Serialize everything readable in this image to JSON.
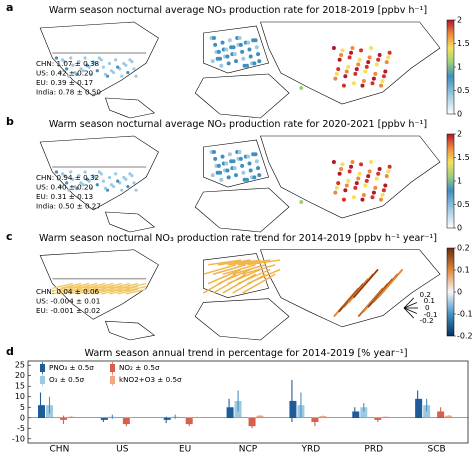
{
  "chart_data": [
    {
      "type": "map",
      "panel": "a",
      "title": "Warm season nocturnal average NO₃ production rate for 2018-2019 [ppbv h⁻¹]",
      "annotations": [
        "CHN: 1.07 ± 0.38",
        "US: 0.42 ± 0.20",
        "EU: 0.39 ± 0.17",
        "India: 0.78 ± 0.50"
      ],
      "clim": [
        0,
        2
      ],
      "cticks": [
        0,
        0.5,
        1,
        1.5,
        2
      ]
    },
    {
      "type": "map",
      "panel": "b",
      "title": "Warm season nocturnal average NO₃ production rate for 2020-2021 [ppbv h⁻¹]",
      "annotations": [
        "CHN: 0.94 ± 0.32",
        "US: 0.40 ± 0.20",
        "EU: 0.31 ± 0.13",
        "India: 0.50 ± 0.27"
      ],
      "clim": [
        0,
        2
      ],
      "cticks": [
        0,
        0.5,
        1,
        1.5,
        2
      ]
    },
    {
      "type": "map",
      "panel": "c",
      "title": "Warm season nocturnal NO₃ production rate trend for 2014-2019 [ppbv h⁻¹ year⁻¹]",
      "annotations": [
        "CHN: 0.04 ± 0.06",
        "US: -0.004 ± 0.01",
        "EU: -0.001 ± 0.02"
      ],
      "clim": [
        -0.2,
        0.2
      ],
      "cticks": [
        -0.2,
        -0.1,
        0,
        0.1,
        0.2
      ],
      "arrow_ticks": [
        0.2,
        0.1,
        0,
        -0.1,
        -0.2
      ]
    },
    {
      "type": "bar",
      "panel": "d",
      "title": "Warm season annual trend in percentage for 2014-2019 [% year⁻¹]",
      "categories": [
        "CHN",
        "US",
        "EU",
        "NCP",
        "YRD",
        "PRD",
        "SCB"
      ],
      "series": [
        {
          "name": "PNO₃ ± 0.5σ",
          "color": "#1f5c99",
          "values": [
            6,
            -1,
            -1,
            5,
            8,
            3,
            9
          ],
          "errors": [
            6,
            1,
            1.5,
            4,
            10,
            2,
            4
          ]
        },
        {
          "name": "O₃ ± 0.5σ",
          "color": "#9ecae1",
          "values": [
            6,
            0.5,
            0.5,
            8,
            6,
            5,
            6
          ],
          "errors": [
            4,
            1,
            1,
            5,
            6,
            2,
            3
          ]
        },
        {
          "name": "NO₂ ± 0.5σ",
          "color": "#d6604d",
          "values": [
            -1,
            -3,
            -3,
            -4,
            -2,
            -1,
            3
          ],
          "errors": [
            2,
            1,
            1,
            1,
            2,
            1,
            2
          ]
        },
        {
          "name": "kNO2+O3 ± 0.5σ",
          "color": "#f4a582",
          "values": [
            0.5,
            0.3,
            0.3,
            1,
            0.8,
            0.5,
            1
          ],
          "errors": [
            0.3,
            0.2,
            0.2,
            0.3,
            0.3,
            0.2,
            0.3
          ]
        }
      ],
      "ylim": [
        -12,
        27
      ],
      "yticks": [
        -10,
        -5,
        0,
        5,
        10,
        15,
        20,
        25
      ]
    }
  ]
}
